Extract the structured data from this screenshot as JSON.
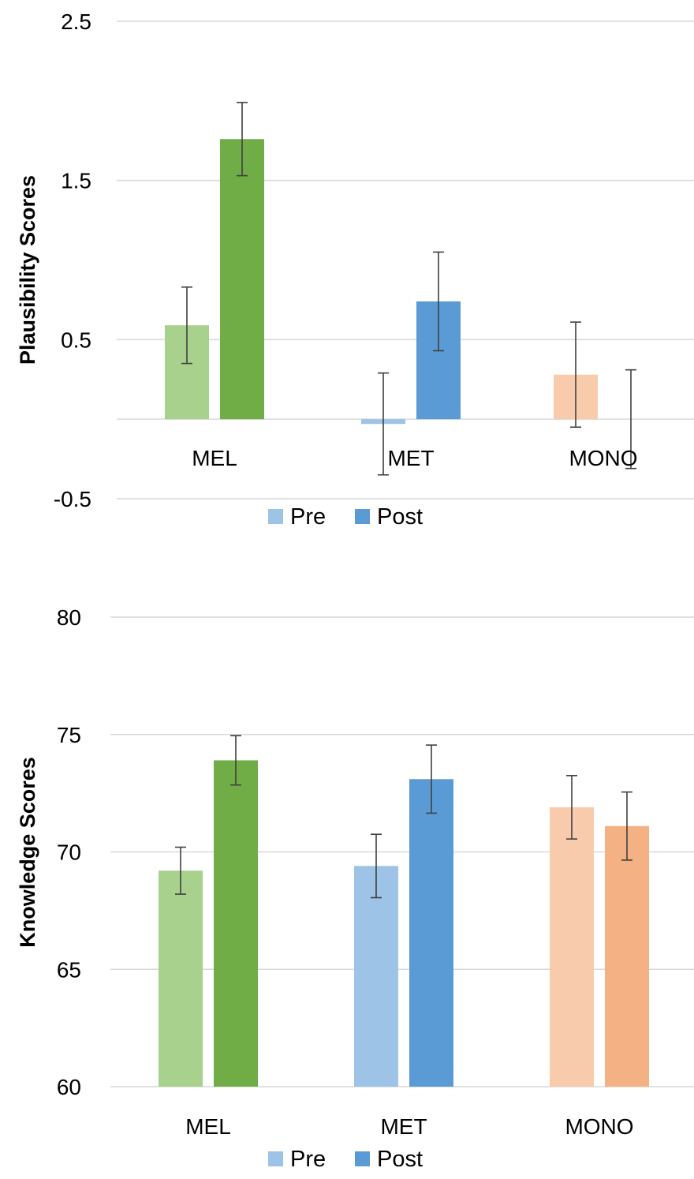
{
  "colors": {
    "MEL": {
      "Pre": "#a9d18e",
      "Post": "#70ad47"
    },
    "MET": {
      "Pre": "#9dc3e6",
      "Post": "#5b9bd5"
    },
    "MONO": {
      "Pre": "#f8cbad",
      "Post": "#f4b183"
    },
    "legend": {
      "Pre": "#9dc3e6",
      "Post": "#5b9bd5"
    }
  },
  "chart_data": [
    {
      "type": "bar",
      "title": "",
      "xlabel": "",
      "ylabel": "Plausibility Scores",
      "ylim": [
        -0.5,
        2.5
      ],
      "yticks": [
        "2.5",
        "1.5",
        "0.5",
        "-0.5"
      ],
      "ytick_values": [
        2.5,
        1.5,
        0.5,
        -0.5
      ],
      "categories": [
        "MEL",
        "MET",
        "MONO"
      ],
      "series": [
        {
          "name": "Pre",
          "values": [
            0.59,
            -0.03,
            0.28
          ],
          "error": [
            0.24,
            0.32,
            0.33
          ]
        },
        {
          "name": "Post",
          "values": [
            1.76,
            0.74,
            0.0
          ],
          "error": [
            0.23,
            0.31,
            0.31
          ]
        }
      ],
      "legend": [
        "Pre",
        "Post"
      ],
      "legend_position": "bottom",
      "grid": true
    },
    {
      "type": "bar",
      "title": "",
      "xlabel": "",
      "ylabel": "Knowledge Scores",
      "ylim": [
        60,
        80
      ],
      "yticks": [
        "80",
        "75",
        "70",
        "65",
        "60"
      ],
      "ytick_values": [
        80,
        75,
        70,
        65,
        60
      ],
      "categories": [
        "MEL",
        "MET",
        "MONO"
      ],
      "series": [
        {
          "name": "Pre",
          "values": [
            69.2,
            69.4,
            71.9
          ],
          "error": [
            1.0,
            1.35,
            1.35
          ]
        },
        {
          "name": "Post",
          "values": [
            73.9,
            73.1,
            71.1
          ],
          "error": [
            1.05,
            1.45,
            1.45
          ]
        }
      ],
      "legend": [
        "Pre",
        "Post"
      ],
      "legend_position": "bottom",
      "grid": true
    }
  ]
}
